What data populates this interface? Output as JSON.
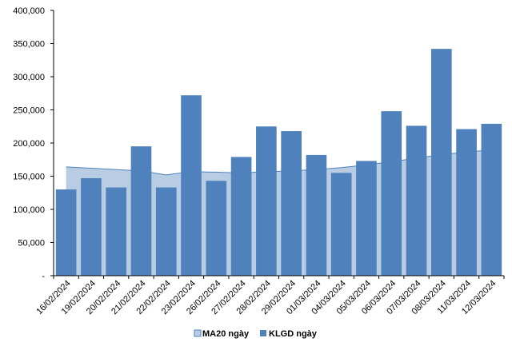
{
  "chart_data": {
    "type": "bar",
    "categories": [
      "16/02/2024",
      "19/02/2024",
      "20/02/2024",
      "21/02/2024",
      "22/02/2024",
      "23/02/2024",
      "26/02/2024",
      "27/02/2024",
      "28/02/2024",
      "29/02/2024",
      "01/03/2024",
      "04/03/2024",
      "05/03/2024",
      "06/03/2024",
      "07/03/2024",
      "08/03/2024",
      "11/03/2024",
      "12/03/2024"
    ],
    "series": [
      {
        "name": "MA20 ngày",
        "type": "area",
        "color": "#b8cce4",
        "stroke": "#4f81bd",
        "values": [
          164000,
          162000,
          160000,
          158000,
          152000,
          157000,
          156000,
          155000,
          157000,
          158000,
          160000,
          163000,
          167000,
          172000,
          177000,
          183000,
          186000,
          190000
        ]
      },
      {
        "name": "KLGD ngày",
        "type": "bar",
        "color": "#4f81bd",
        "values": [
          130000,
          147000,
          133000,
          195000,
          133000,
          272000,
          143000,
          179000,
          225000,
          218000,
          182000,
          155000,
          173000,
          248000,
          226000,
          342000,
          221000,
          229000
        ]
      }
    ],
    "yticks": [
      "-",
      "50,000",
      "100,000",
      "150,000",
      "200,000",
      "250,000",
      "300,000",
      "350,000",
      "400,000"
    ],
    "ylim": [
      0,
      400000
    ],
    "grid": false,
    "legend": "bottom-center",
    "title": "",
    "xlabel": "",
    "ylabel": ""
  }
}
